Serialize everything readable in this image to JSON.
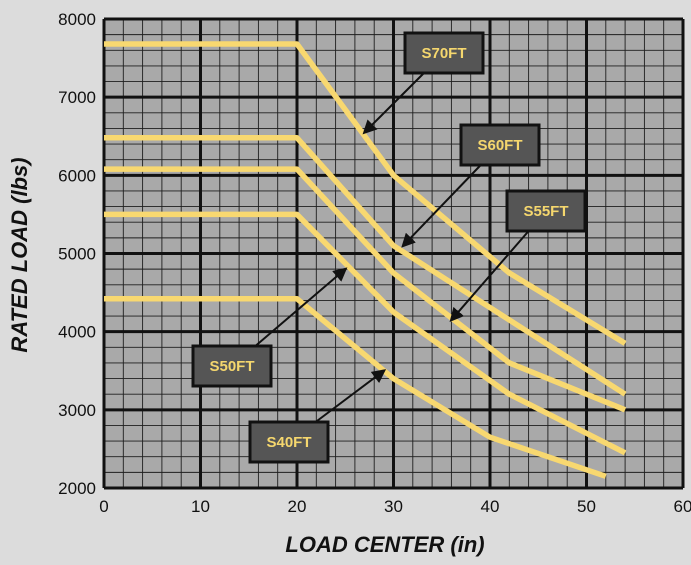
{
  "chart_data": {
    "type": "line",
    "xlabel": "LOAD CENTER (in)",
    "ylabel": "RATED LOAD (lbs)",
    "xlim": [
      0,
      60
    ],
    "ylim": [
      2000,
      8000
    ],
    "x_ticks": [
      "0",
      "10",
      "20",
      "30",
      "40",
      "50",
      "60"
    ],
    "y_ticks": [
      "2000",
      "3000",
      "4000",
      "5000",
      "6000",
      "7000",
      "8000"
    ],
    "grid": true,
    "colors": {
      "background": "#dcdcdc",
      "plot_area": "#a9a9a9",
      "grid_major": "#111111",
      "grid_minor": "#1e1e1e",
      "line": "#f8d870",
      "label_box": "#555555",
      "label_text": "#f5d76e"
    },
    "series": [
      {
        "name": "S70FT",
        "points": [
          [
            0,
            7680
          ],
          [
            20,
            7680
          ],
          [
            30,
            6000
          ],
          [
            42,
            4750
          ],
          [
            54,
            3850
          ]
        ]
      },
      {
        "name": "S60FT",
        "points": [
          [
            0,
            6480
          ],
          [
            20,
            6480
          ],
          [
            30,
            5100
          ],
          [
            42,
            4150
          ],
          [
            54,
            3200
          ]
        ]
      },
      {
        "name": "S55FT",
        "points": [
          [
            0,
            6080
          ],
          [
            20,
            6080
          ],
          [
            30,
            4750
          ],
          [
            42,
            3600
          ],
          [
            54,
            3000
          ]
        ]
      },
      {
        "name": "S50FT",
        "points": [
          [
            0,
            5500
          ],
          [
            20,
            5500
          ],
          [
            30,
            4250
          ],
          [
            42,
            3200
          ],
          [
            54,
            2450
          ]
        ]
      },
      {
        "name": "S40FT",
        "points": [
          [
            0,
            4420
          ],
          [
            20,
            4420
          ],
          [
            30,
            3400
          ],
          [
            40,
            2650
          ],
          [
            52,
            2150
          ]
        ]
      }
    ],
    "annotations": [
      {
        "label": "S70FT",
        "series": "S70FT",
        "arrow_to": [
          27,
          6550
        ]
      },
      {
        "label": "S60FT",
        "series": "S60FT",
        "arrow_to": [
          31,
          5100
        ]
      },
      {
        "label": "S55FT",
        "series": "S55FT",
        "arrow_to": [
          36,
          4150
        ]
      },
      {
        "label": "S50FT",
        "series": "S50FT",
        "arrow_to": [
          25,
          4800
        ]
      },
      {
        "label": "S40FT",
        "series": "S40FT",
        "arrow_to": [
          29,
          3500
        ]
      }
    ]
  }
}
